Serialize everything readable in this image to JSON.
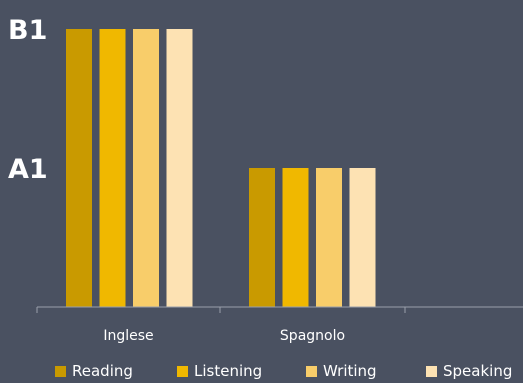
{
  "chart_data": {
    "type": "bar",
    "categories": [
      "Inglese",
      "Spagnolo"
    ],
    "series": [
      {
        "name": "Reading",
        "values": [
          2,
          1
        ],
        "color": "#c99a00"
      },
      {
        "name": "Listening",
        "values": [
          2,
          1
        ],
        "color": "#f0b800"
      },
      {
        "name": "Writing",
        "values": [
          2,
          1
        ],
        "color": "#f8cd6a"
      },
      {
        "name": "Speaking",
        "values": [
          2,
          1
        ],
        "color": "#fde2b3"
      }
    ],
    "level_labels": [
      {
        "label": "B1",
        "value": 2
      },
      {
        "label": "A1",
        "value": 1
      }
    ],
    "ylim": [
      0,
      2
    ],
    "grid": false,
    "legend_position": "bottom"
  },
  "colors": {
    "background": "#4a5161",
    "axis": "#9aa0ab",
    "text": "#ffffff"
  }
}
